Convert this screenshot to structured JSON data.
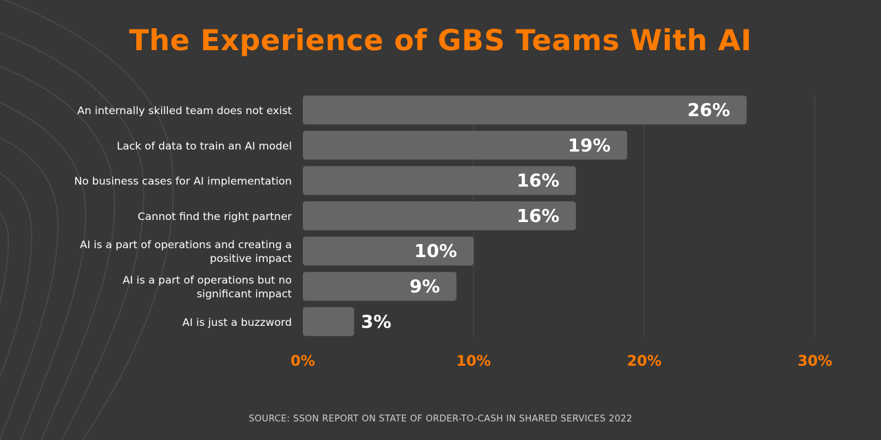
{
  "title": "The Experience of GBS Teams With AI",
  "source": "SOURCE: SSON REPORT ON STATE OF ORDER-TO-CASH IN SHARED SERVICES 2022",
  "colors": {
    "background": "#373737",
    "bar": "#666666",
    "accent": "#ff7a00",
    "label": "#ffffff",
    "grid": "#4d4d4d"
  },
  "chart_data": {
    "type": "bar",
    "orientation": "horizontal",
    "categories": [
      "An internally skilled team does not exist",
      "Lack of data to train an AI model",
      "No business cases for AI implementation",
      "Cannot find the right partner",
      "AI is a part of operations and creating a positive impact",
      "AI is a part of operations but no significant impact",
      "AI is just a buzzword"
    ],
    "category_lines": [
      [
        "An internally skilled team does not exist"
      ],
      [
        "Lack of data to train an AI model"
      ],
      [
        "No business cases for AI implementation"
      ],
      [
        "Cannot find the right partner"
      ],
      [
        "AI is a part of operations and creating a",
        "positive impact"
      ],
      [
        "AI is a part of operations but no",
        "significant impact"
      ],
      [
        "AI is just a buzzword"
      ]
    ],
    "values": [
      26,
      19,
      16,
      16,
      10,
      9,
      3
    ],
    "data_labels": [
      "26%",
      "19%",
      "16%",
      "16%",
      "10%",
      "9%",
      "3%"
    ],
    "xlim": [
      0,
      30
    ],
    "xticks": [
      0,
      10,
      20,
      30
    ],
    "xtick_labels": [
      "0%",
      "10%",
      "20%",
      "30%"
    ],
    "grid": true
  }
}
